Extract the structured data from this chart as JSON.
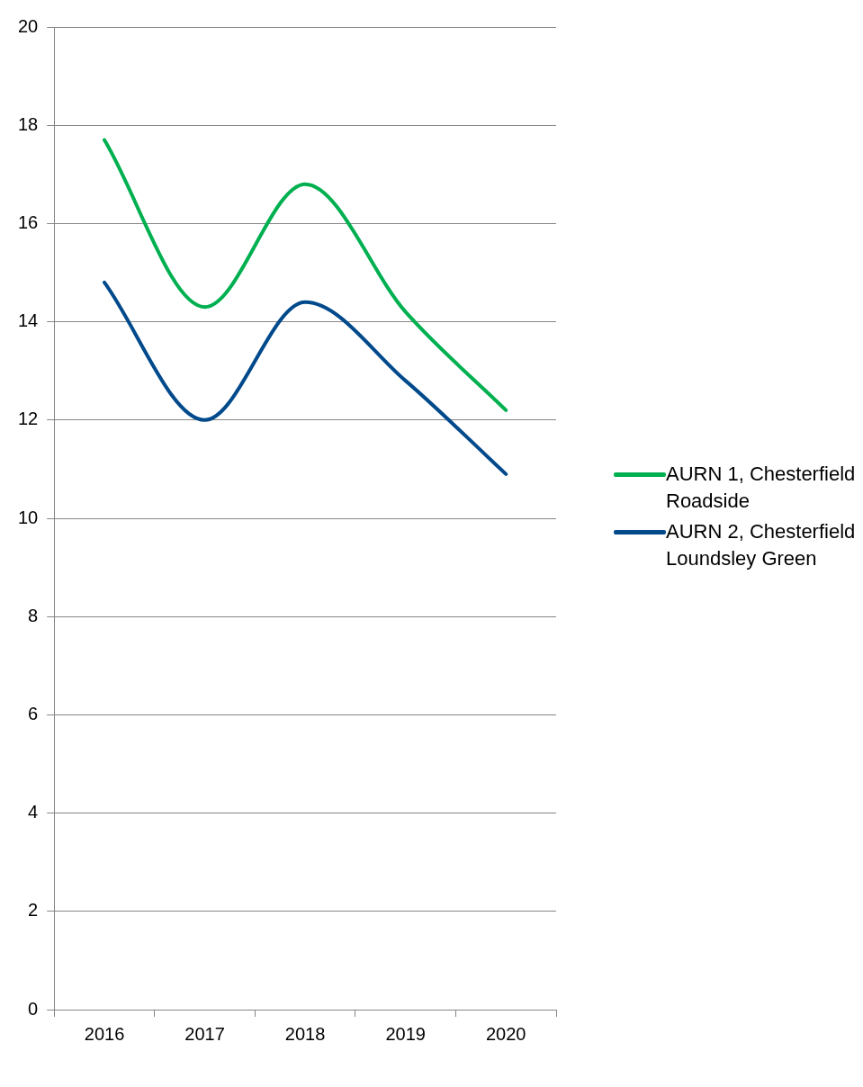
{
  "chart_data": {
    "type": "line",
    "categories": [
      "2016",
      "2017",
      "2018",
      "2019",
      "2020"
    ],
    "series": [
      {
        "name": "AURN 1, Chesterfield Roadside",
        "color": "#00b050",
        "values": [
          17.7,
          14.3,
          16.8,
          14.2,
          12.2
        ]
      },
      {
        "name": "AURN 2, Chesterfield Loundsley Green",
        "color": "#004a8c",
        "values": [
          14.8,
          12.0,
          14.4,
          12.8,
          10.9
        ]
      }
    ],
    "ylim": [
      0,
      20
    ],
    "yticks": [
      0,
      2,
      4,
      6,
      8,
      10,
      12,
      14,
      16,
      18,
      20
    ],
    "grid": "y",
    "legend": "right",
    "marker": "none",
    "line_style": "solid"
  }
}
